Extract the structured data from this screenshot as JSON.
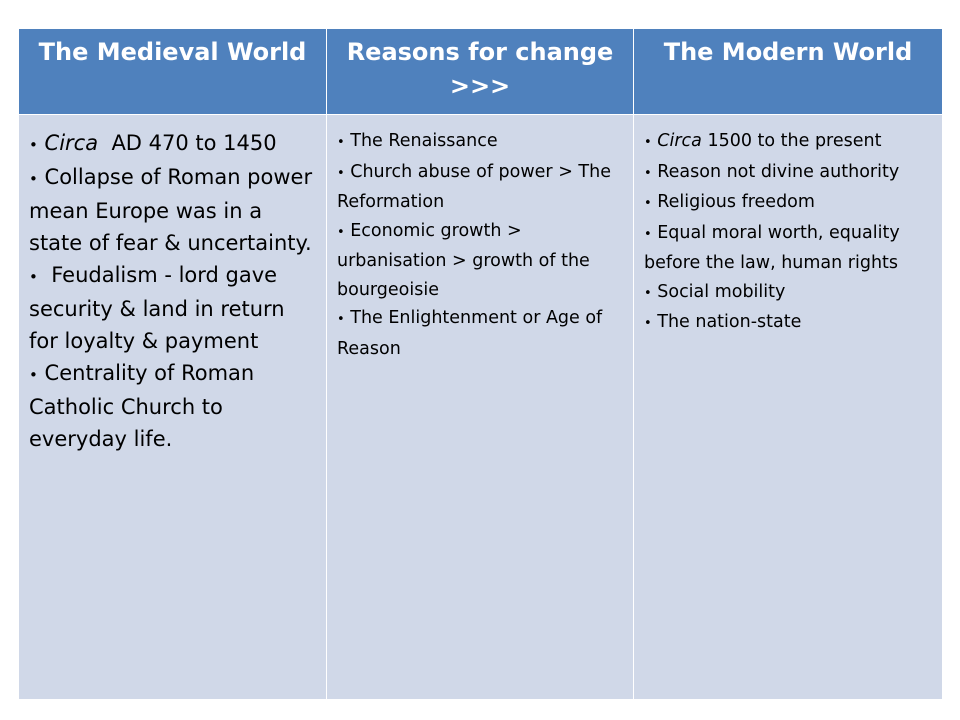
{
  "table": {
    "headers": [
      "The  Medieval World",
      "Reasons for change >>>",
      "The Modern World"
    ],
    "columns": [
      {
        "items": [
          {
            "italic": "Circa",
            "text": "  AD 470 to 1450"
          },
          {
            "italic": "",
            "text": "Collapse of Roman power mean Europe was in a state of fear & uncertainty."
          },
          {
            "italic": "",
            "text": " Feudalism - lord gave security & land in return for loyalty & payment"
          },
          {
            "italic": "",
            "text": "Centrality of Roman Catholic Church to everyday life."
          }
        ]
      },
      {
        "items": [
          {
            "italic": "",
            "text": "The Renaissance"
          },
          {
            "italic": "",
            "text": "Church abuse of power > The Reformation"
          },
          {
            "italic": "",
            "text": "Economic growth > urbanisation > growth of the bourgeoisie"
          },
          {
            "italic": "",
            "text": "The Enlightenment or Age of Reason"
          }
        ]
      },
      {
        "items": [
          {
            "italic": "Circa",
            "text": " 1500 to the present"
          },
          {
            "italic": "",
            "text": "Reason not divine authority"
          },
          {
            "italic": "",
            "text": "Religious freedom"
          },
          {
            "italic": "",
            "text": "Equal moral worth, equality before the law, human rights"
          },
          {
            "italic": "",
            "text": "Social mobility"
          },
          {
            "italic": "",
            "text": "The nation-state"
          }
        ]
      }
    ]
  },
  "bullet_char": "•",
  "colors": {
    "header_bg": "#4f81bd",
    "header_text": "#ffffff",
    "cell_bg": "#d0d8e8",
    "body_text": "#000000"
  }
}
